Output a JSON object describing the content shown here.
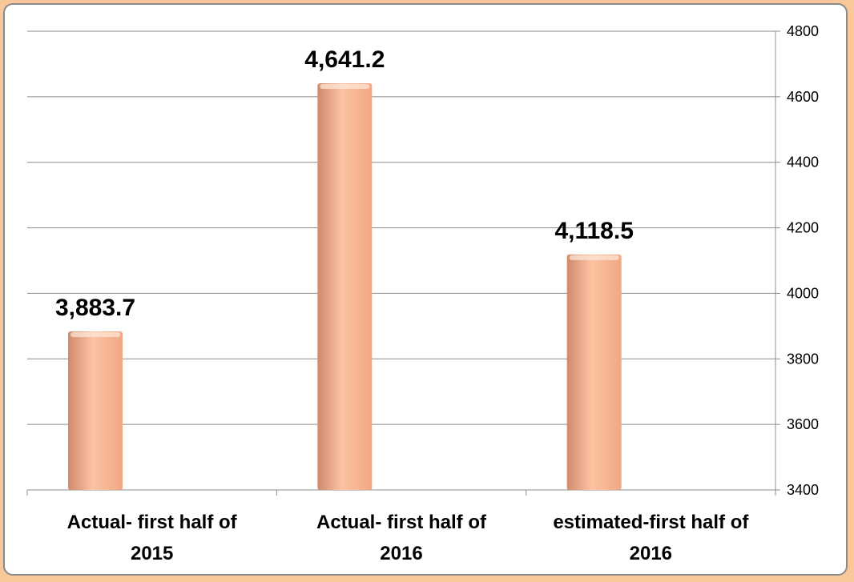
{
  "chart_data": {
    "type": "bar",
    "categories": [
      [
        "Actual- first half of",
        "2015"
      ],
      [
        "Actual- first half of",
        "2016"
      ],
      [
        "estimated-first half of",
        "2016"
      ]
    ],
    "values": [
      3883.7,
      4641.2,
      4118.5
    ],
    "data_labels": [
      "3,883.7",
      "4,641.2",
      "4,118.5"
    ],
    "y_axis_position": "right",
    "ylim": [
      3400,
      4800
    ],
    "y_ticks": [
      3400,
      3600,
      3800,
      4000,
      4200,
      4400,
      4600,
      4800
    ],
    "grid": true,
    "title": "",
    "xlabel": "",
    "ylabel": "",
    "colors": {
      "bar_light": "#fbc3a2",
      "bar_mid": "#f2a784",
      "bar_dark": "#d08a6c",
      "grid": "#8c8c8c",
      "frame_border": "#8a8a8a",
      "frame_glow": "#f8c79a"
    }
  }
}
